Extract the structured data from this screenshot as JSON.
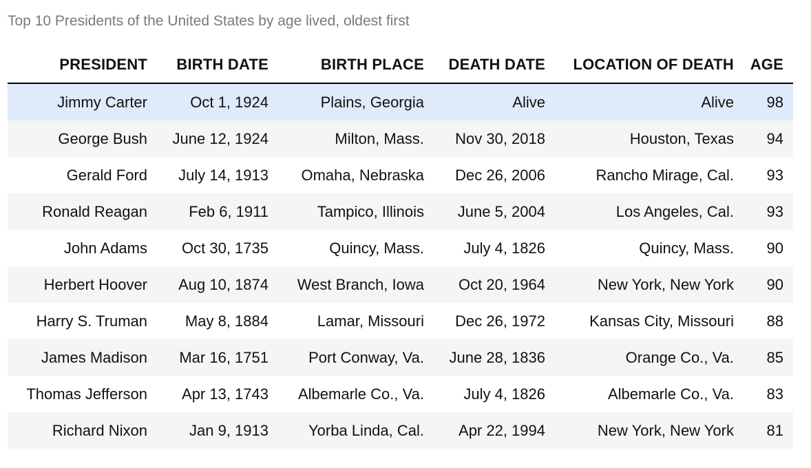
{
  "chart_data": {
    "type": "table",
    "title": "Top 10 Presidents of the United States by age lived, oldest first",
    "highlight_color": "#dfeafb",
    "stripe_color": "#f5f5f5",
    "columns": [
      "PRESIDENT",
      "BIRTH DATE",
      "BIRTH PLACE",
      "DEATH DATE",
      "LOCATION OF DEATH",
      "AGE"
    ],
    "rows": [
      [
        "Jimmy Carter",
        "Oct 1, 1924",
        "Plains, Georgia",
        "Alive",
        "Alive",
        "98"
      ],
      [
        "George Bush",
        "June 12, 1924",
        "Milton, Mass.",
        "Nov 30, 2018",
        "Houston, Texas",
        "94"
      ],
      [
        "Gerald Ford",
        "July 14, 1913",
        "Omaha, Nebraska",
        "Dec 26, 2006",
        "Rancho Mirage, Cal.",
        "93"
      ],
      [
        "Ronald Reagan",
        "Feb 6, 1911",
        "Tampico, Illinois",
        "June 5, 2004",
        "Los Angeles, Cal.",
        "93"
      ],
      [
        "John Adams",
        "Oct 30, 1735",
        "Quincy, Mass.",
        "July 4, 1826",
        "Quincy, Mass.",
        "90"
      ],
      [
        "Herbert Hoover",
        "Aug 10, 1874",
        "West Branch, Iowa",
        "Oct 20, 1964",
        "New York, New York",
        "90"
      ],
      [
        "Harry S. Truman",
        "May 8, 1884",
        "Lamar, Missouri",
        "Dec 26, 1972",
        "Kansas City, Missouri",
        "88"
      ],
      [
        "James Madison",
        "Mar 16, 1751",
        "Port Conway, Va.",
        "June 28, 1836",
        "Orange Co., Va.",
        "85"
      ],
      [
        "Thomas Jefferson",
        "Apr 13, 1743",
        "Albemarle Co., Va.",
        "July 4, 1826",
        "Albemarle Co., Va.",
        "83"
      ],
      [
        "Richard Nixon",
        "Jan 9, 1913",
        "Yorba Linda, Cal.",
        "Apr 22, 1994",
        "New York, New York",
        "81"
      ]
    ]
  }
}
